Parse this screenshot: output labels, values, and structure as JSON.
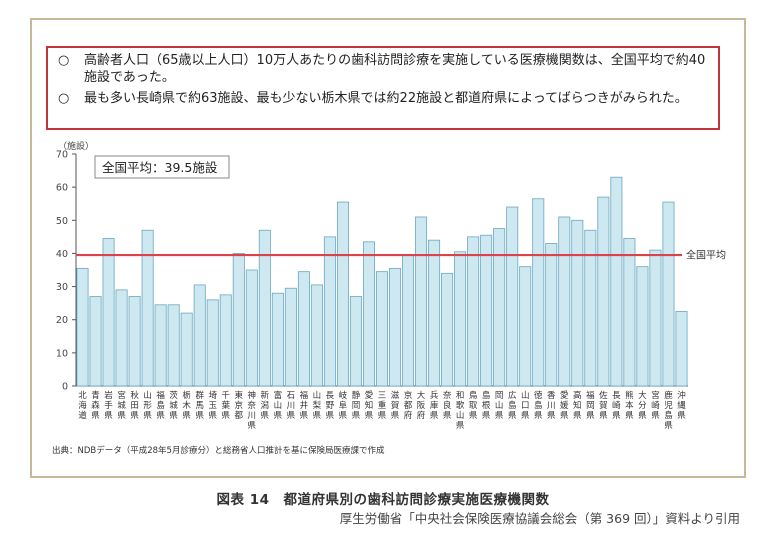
{
  "notes": [
    {
      "mark": "○",
      "text": "高齢者人口（65歳以上人口）10万人あたりの歯科訪問診療を実施している医療機関数は、全国平均で約40施設であった。"
    },
    {
      "mark": "○",
      "text": "最も多い長崎県で約63施設、最も少ない栃木県では約22施設と都道府県によってばらつきがみられた。"
    }
  ],
  "source": "出典：NDBデータ（平成28年5月診療分）と総務省人口推計を基に保険局医療課で作成",
  "figure_caption": "図表 14　都道府県別の歯科訪問診療実施医療機関数",
  "credit": "厚生労働省「中央社会保険医療協議会総会（第 369 回）」資料より引用",
  "colors": {
    "bar_fill": "#cde8f1",
    "bar_stroke": "#6aa7bf",
    "avg_line": "#d9434a",
    "axis": "#555555",
    "frame": "#c8b89a",
    "notes_border": "#c0353a"
  },
  "chart_data": {
    "type": "bar",
    "y_unit": "（施設）",
    "ylim": [
      0,
      70
    ],
    "yticks": [
      0,
      10,
      20,
      30,
      40,
      50,
      60,
      70
    ],
    "average_box": "全国平均：39.5施設",
    "average_label": "全国平均",
    "average_value": 39.5,
    "categories": [
      "北海道",
      "青森県",
      "岩手県",
      "宮城県",
      "秋田県",
      "山形県",
      "福島県",
      "茨城県",
      "栃木県",
      "群馬県",
      "埼玉県",
      "千葉県",
      "東京都",
      "神奈川県",
      "新潟県",
      "富山県",
      "石川県",
      "福井県",
      "山梨県",
      "長野県",
      "岐阜県",
      "静岡県",
      "愛知県",
      "三重県",
      "滋賀県",
      "京都府",
      "大阪府",
      "兵庫県",
      "奈良県",
      "和歌山県",
      "鳥取県",
      "島根県",
      "岡山県",
      "広島県",
      "山口県",
      "徳島県",
      "香川県",
      "愛媛県",
      "高知県",
      "福岡県",
      "佐賀県",
      "長崎県",
      "熊本県",
      "大分県",
      "宮崎県",
      "鹿児島県",
      "沖縄県"
    ],
    "values": [
      35.5,
      27,
      44.5,
      29,
      27,
      47,
      24.5,
      24.5,
      22,
      30.5,
      26,
      27.5,
      40,
      35,
      47,
      28,
      29.5,
      34.5,
      30.5,
      45,
      55.5,
      27,
      43.5,
      34.5,
      35.5,
      39.5,
      51,
      44,
      34,
      40.5,
      45,
      45.5,
      47.5,
      54,
      36,
      56.5,
      43,
      51,
      50,
      47,
      57,
      63,
      44.5,
      36,
      41,
      55.5,
      22.5
    ]
  }
}
